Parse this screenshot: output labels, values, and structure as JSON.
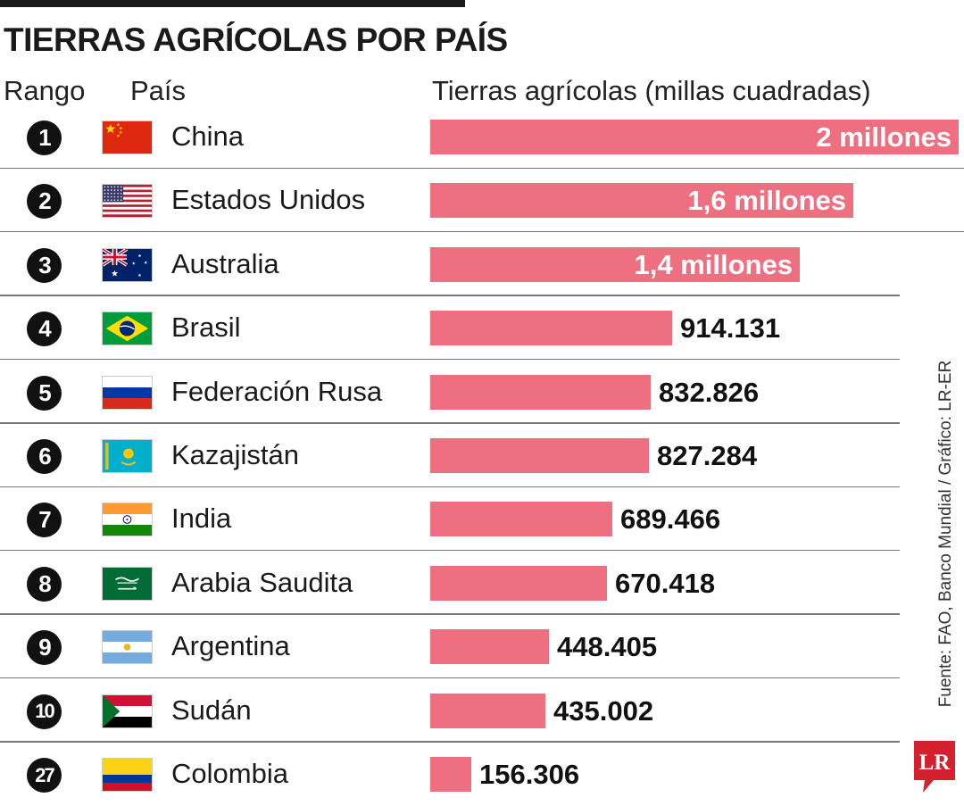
{
  "title": "TIERRAS AGRÍCOLAS POR PAÍS",
  "headers": {
    "rank": "Rango",
    "country": "País",
    "value": "Tierras agrícolas (millas cuadradas)"
  },
  "source": "Fuente: FAO, Banco Mundial / Gráfico: LR-ER",
  "logo": "LR",
  "colors": {
    "bar": "#ee6f80",
    "badge": "#111111",
    "logo": "#d4202f"
  },
  "chart_data": {
    "type": "bar",
    "orientation": "horizontal",
    "title": "TIERRAS AGRÍCOLAS POR PAÍS",
    "xlabel": "Tierras agrícolas (millas cuadradas)",
    "ylabel": "",
    "xlim": [
      0,
      2000000
    ],
    "grid": false,
    "legend": "none",
    "rows": [
      {
        "rank": "1",
        "country": "China",
        "flag": "china-flag-icon",
        "value": 2000000,
        "label": "2 millones"
      },
      {
        "rank": "2",
        "country": "Estados Unidos",
        "flag": "usa-flag-icon",
        "value": 1600000,
        "label": "1,6 millones"
      },
      {
        "rank": "3",
        "country": "Australia",
        "flag": "australia-flag-icon",
        "value": 1400000,
        "label": "1,4 millones"
      },
      {
        "rank": "4",
        "country": "Brasil",
        "flag": "brazil-flag-icon",
        "value": 914131,
        "label": "914.131"
      },
      {
        "rank": "5",
        "country": "Federación Rusa",
        "flag": "russia-flag-icon",
        "value": 832826,
        "label": "832.826"
      },
      {
        "rank": "6",
        "country": "Kazajistán",
        "flag": "kazakhstan-flag-icon",
        "value": 827284,
        "label": "827.284"
      },
      {
        "rank": "7",
        "country": "India",
        "flag": "india-flag-icon",
        "value": 689466,
        "label": "689.466"
      },
      {
        "rank": "8",
        "country": "Arabia Saudita",
        "flag": "saudi-arabia-flag-icon",
        "value": 670418,
        "label": "670.418"
      },
      {
        "rank": "9",
        "country": "Argentina",
        "flag": "argentina-flag-icon",
        "value": 448405,
        "label": "448.405"
      },
      {
        "rank": "10",
        "country": "Sudán",
        "flag": "sudan-flag-icon",
        "value": 435002,
        "label": "435.002"
      },
      {
        "rank": "27",
        "country": "Colombia",
        "flag": "colombia-flag-icon",
        "value": 156306,
        "label": "156.306"
      }
    ]
  }
}
